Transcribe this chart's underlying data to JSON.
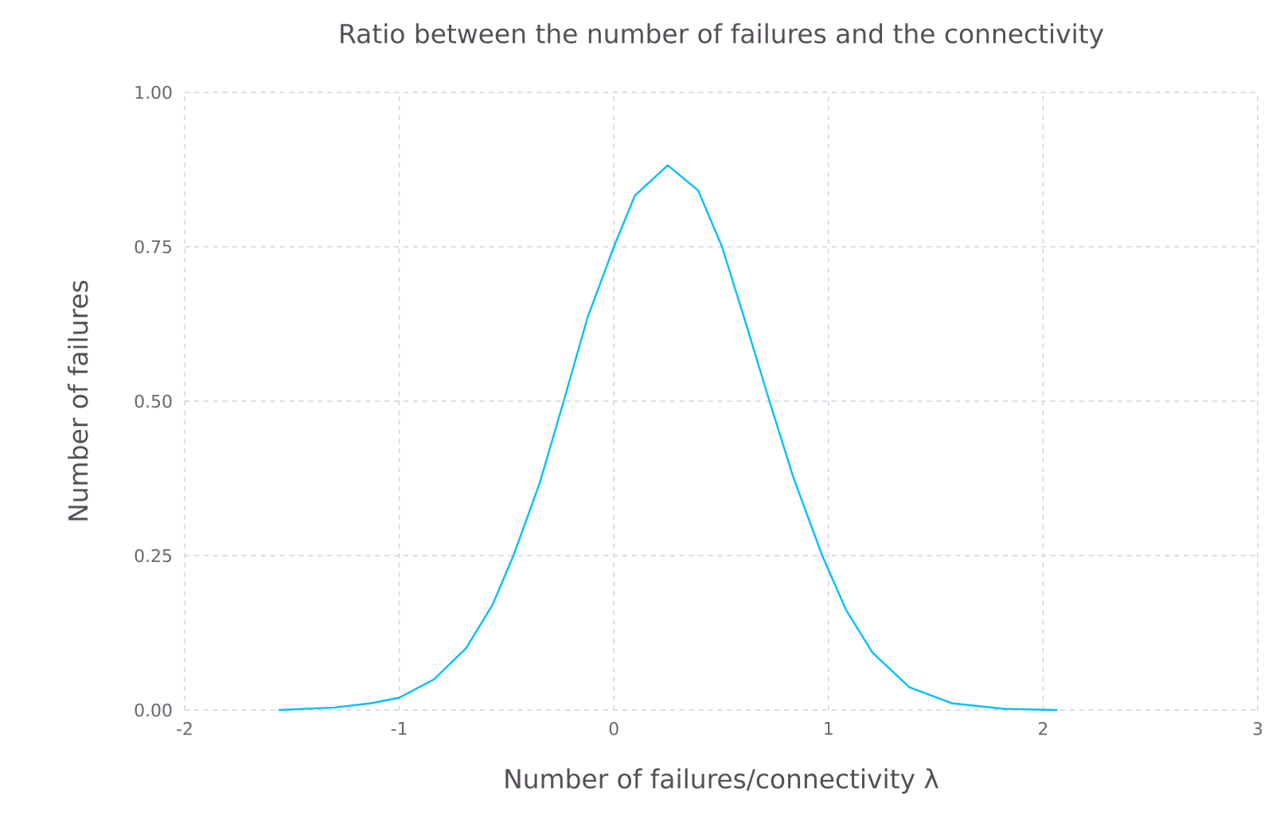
{
  "chart_data": {
    "type": "line",
    "title": "Ratio between the number of failures and the connectivity",
    "xlabel": "Number of failures/connectivity λ",
    "ylabel": "Number of failures",
    "xlim": [
      -2,
      3
    ],
    "ylim": [
      0,
      1
    ],
    "xticks": [
      -2,
      -1,
      0,
      1,
      2,
      3
    ],
    "yticks": [
      {
        "value": 0,
        "label": "0.00"
      },
      {
        "value": 0.25,
        "label": "0.25"
      },
      {
        "value": 0.5,
        "label": "0.50"
      },
      {
        "value": 0.75,
        "label": "0.75"
      },
      {
        "value": 1,
        "label": "1.00"
      }
    ],
    "grid": true,
    "marker": "none",
    "line_style": "solid",
    "series": [
      {
        "color": "#00bfff",
        "x": [
          -1.562,
          -1.304,
          -1.132,
          -1.0,
          -0.837,
          -0.689,
          -0.566,
          -0.468,
          -0.345,
          -0.234,
          -0.123,
          0.0,
          0.098,
          0.251,
          0.393,
          0.504,
          0.615,
          0.725,
          0.836,
          0.971,
          1.082,
          1.205,
          1.377,
          1.574,
          1.818,
          2.066
        ],
        "values": [
          0.0,
          0.004,
          0.011,
          0.02,
          0.05,
          0.1,
          0.17,
          0.25,
          0.368,
          0.5,
          0.635,
          0.75,
          0.833,
          0.882,
          0.841,
          0.75,
          0.626,
          0.5,
          0.377,
          0.25,
          0.162,
          0.093,
          0.037,
          0.011,
          0.002,
          0.0
        ]
      }
    ]
  }
}
